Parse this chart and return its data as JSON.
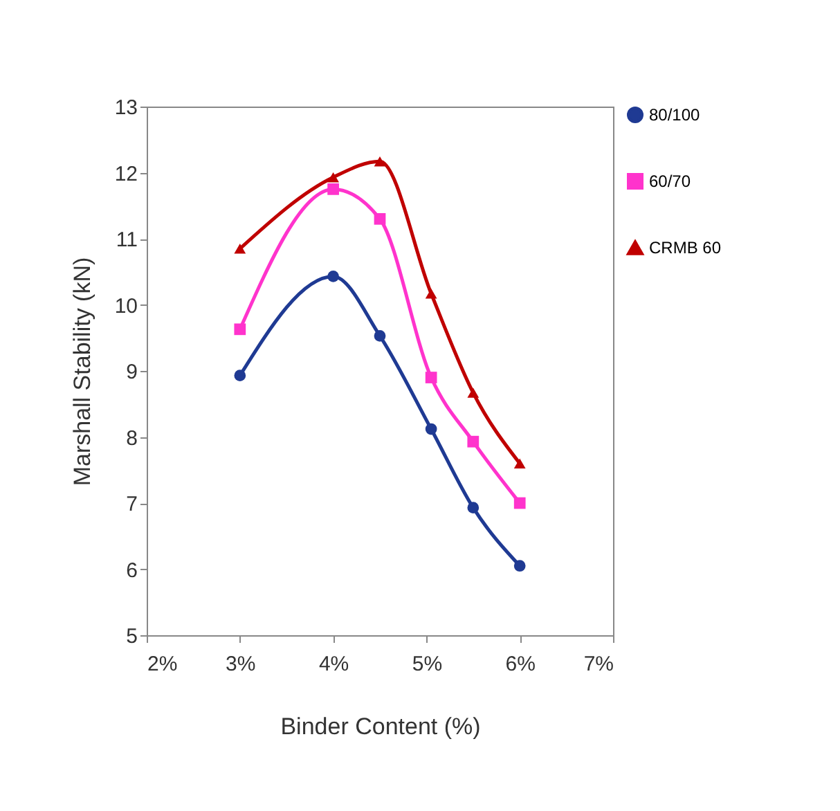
{
  "chart_data": {
    "type": "line",
    "xlabel": "Binder Content (%)",
    "ylabel": "Marshall Stability (kN)",
    "x": [
      3,
      4,
      4.5,
      5.05,
      5.5,
      6
    ],
    "series": [
      {
        "name": "80/100",
        "color": "#1f3a93",
        "marker": "circle",
        "values": [
          8.93,
          10.43,
          9.53,
          8.12,
          6.93,
          6.05
        ]
      },
      {
        "name": "60/70",
        "color": "#ff33cc",
        "marker": "square",
        "values": [
          9.63,
          11.75,
          11.3,
          8.9,
          7.93,
          7.0
        ]
      },
      {
        "name": "CRMB 60",
        "color": "#c00000",
        "marker": "triangle",
        "values": [
          10.85,
          11.93,
          12.17,
          10.17,
          8.67,
          7.6
        ]
      }
    ],
    "xlim": [
      2,
      7
    ],
    "xticks": [
      {
        "value": 2,
        "label": "2%"
      },
      {
        "value": 3,
        "label": "3%"
      },
      {
        "value": 4,
        "label": "4%"
      },
      {
        "value": 5,
        "label": "5%"
      },
      {
        "value": 6,
        "label": "6%"
      },
      {
        "value": 7,
        "label": "7%"
      }
    ],
    "ylim": [
      5,
      13
    ],
    "yticks": [
      5,
      6,
      7,
      8,
      9,
      10,
      11,
      12,
      13
    ],
    "grid": false,
    "legend": "right",
    "line_style": "solid"
  }
}
